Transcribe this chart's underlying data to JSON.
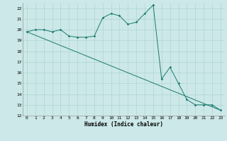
{
  "xlabel": "Humidex (Indice chaleur)",
  "line1_x": [
    0,
    1,
    2,
    3,
    4,
    5,
    6,
    7,
    8,
    9,
    10,
    11,
    12,
    13,
    14,
    15,
    16,
    17,
    18,
    19,
    20,
    21,
    22,
    23
  ],
  "line1_y": [
    19.8,
    20.0,
    20.0,
    19.8,
    20.0,
    19.4,
    19.3,
    19.3,
    19.4,
    21.1,
    21.5,
    21.3,
    20.5,
    20.7,
    21.5,
    22.3,
    15.4,
    16.5,
    15.0,
    13.5,
    13.0,
    13.0,
    13.0,
    12.5
  ],
  "line2_x": [
    0,
    23
  ],
  "line2_y": [
    19.8,
    12.5
  ],
  "line_color": "#1a7a6e",
  "bg_color": "#cce8e8",
  "grid_color": "#aacfcf",
  "xlim": [
    -0.5,
    23.5
  ],
  "ylim": [
    12,
    22.5
  ],
  "yticks": [
    12,
    13,
    14,
    15,
    16,
    17,
    18,
    19,
    20,
    21,
    22
  ],
  "xticks": [
    0,
    1,
    2,
    3,
    4,
    5,
    6,
    7,
    8,
    9,
    10,
    11,
    12,
    13,
    14,
    15,
    16,
    17,
    18,
    19,
    20,
    21,
    22,
    23
  ],
  "marker": "D",
  "markersize": 1.8,
  "linewidth": 0.7,
  "xlabel_fontsize": 5.5,
  "tick_fontsize": 4.5
}
